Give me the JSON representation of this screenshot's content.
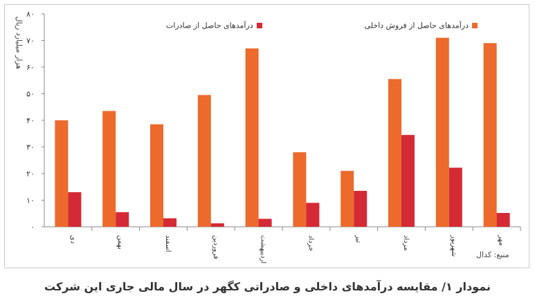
{
  "chart_data": {
    "type": "bar",
    "title": "نمودار ۱/ مقایسه درآمدهای داخلی و صادراتی کگهر در سال مالی جاری این شرکت",
    "ylabel": "هزار میلیارد ریال",
    "xlabel": "",
    "ylim": [
      0,
      80
    ],
    "yticks": [
      "۰",
      "۱۰",
      "۲۰",
      "۳۰",
      "۴۰",
      "۵۰",
      "۶۰",
      "۷۰",
      "۸۰"
    ],
    "grid": false,
    "legend_position": "top",
    "categories": [
      "دی",
      "بهمن",
      "اسفند",
      "فروردین",
      "اردیبهشت",
      "خرداد",
      "تیر",
      "مرداد",
      "شهریور",
      "مهر"
    ],
    "series": [
      {
        "name": "درآمدهای حاصل از فروش داخلی",
        "color": "#ec6a2c",
        "values": [
          40,
          43.5,
          38.5,
          49.5,
          67,
          28,
          21,
          55.5,
          71,
          69
        ]
      },
      {
        "name": "درآمدهای حاصل از صادرات",
        "color": "#d42a36",
        "values": [
          13,
          5.5,
          3.2,
          1.3,
          3,
          9,
          13.5,
          34.5,
          22.2,
          5.2
        ]
      }
    ],
    "source": "منبع: کدال"
  }
}
